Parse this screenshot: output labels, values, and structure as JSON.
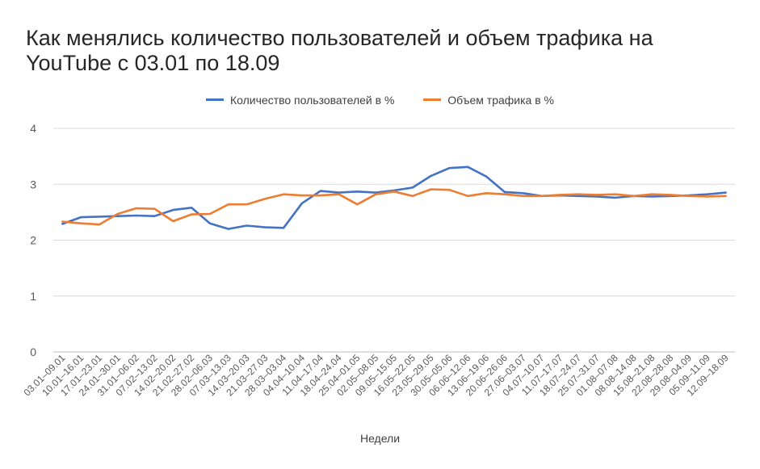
{
  "chart_data": {
    "type": "line",
    "title": "Как менялись количество пользователей и объем трафика на YouTube с 03.01 по 18.09",
    "xlabel": "Недели",
    "ylabel": "",
    "ylim": [
      0,
      4
    ],
    "yticks": [
      0,
      1,
      2,
      3,
      4
    ],
    "grid": true,
    "legend": "top-center",
    "categories": [
      "03.01–09.01",
      "10.01–16.01",
      "17.01–23.01",
      "24.01–30.01",
      "31.01–06.02",
      "07.02–13.02",
      "14.02–20.02",
      "21.02–27.02",
      "28.02–06.03",
      "07.03–13.03",
      "14.03–20.03",
      "21.03–27.03",
      "28.03–03.04",
      "04.04–10.04",
      "11.04–17.04",
      "18.04–24.04",
      "25.04–01.05",
      "02.05–08.05",
      "09.05–15.05",
      "16.05–22.05",
      "23.05–29.05",
      "30.05–05.06",
      "06.06–12.06",
      "13.06–19.06",
      "20.06–26.06",
      "27.06–03.07",
      "04.07–10.07",
      "11.07–17.07",
      "18.07–24.07",
      "25.07–31.07",
      "01.08–07.08",
      "08.08–14.08",
      "15.08–21.08",
      "22.08–28.08",
      "29.08–04.09",
      "05.09–11.09",
      "12.09–18.09"
    ],
    "series": [
      {
        "name": "Количество пользователей в %",
        "color": "#4472C4",
        "values": [
          2.29,
          2.41,
          2.42,
          2.43,
          2.44,
          2.43,
          2.54,
          2.58,
          2.3,
          2.2,
          2.26,
          2.23,
          2.22,
          2.66,
          2.88,
          2.85,
          2.87,
          2.85,
          2.89,
          2.94,
          3.15,
          3.29,
          3.31,
          3.14,
          2.86,
          2.84,
          2.79,
          2.8,
          2.79,
          2.78,
          2.76,
          2.79,
          2.78,
          2.79,
          2.8,
          2.82,
          2.85
        ]
      },
      {
        "name": "Объем трафика в %",
        "color": "#ED7D31",
        "values": [
          2.33,
          2.3,
          2.28,
          2.47,
          2.57,
          2.56,
          2.34,
          2.46,
          2.47,
          2.64,
          2.64,
          2.74,
          2.82,
          2.8,
          2.8,
          2.82,
          2.64,
          2.82,
          2.87,
          2.79,
          2.91,
          2.9,
          2.79,
          2.84,
          2.82,
          2.79,
          2.79,
          2.81,
          2.82,
          2.81,
          2.82,
          2.79,
          2.82,
          2.81,
          2.79,
          2.78,
          2.79
        ]
      }
    ]
  }
}
